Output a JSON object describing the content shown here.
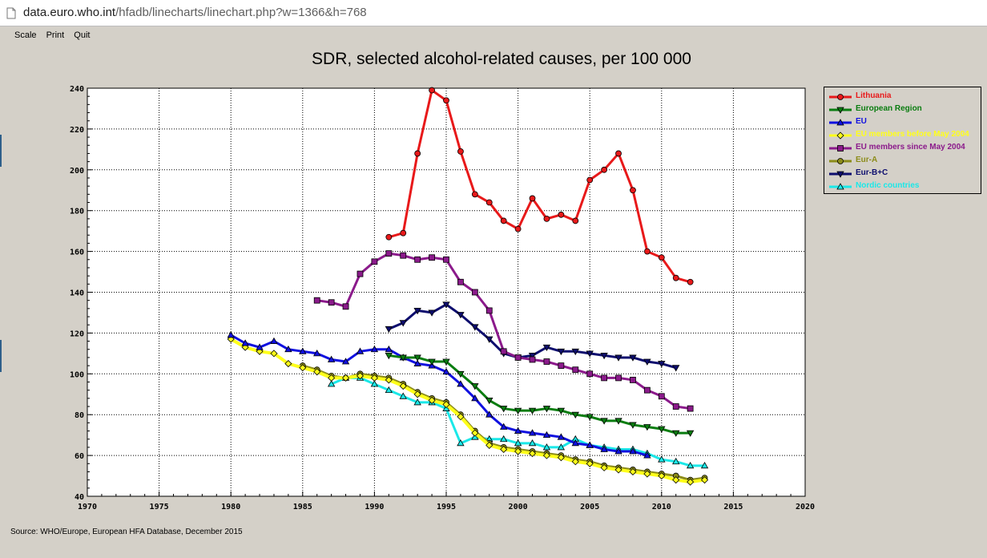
{
  "browser": {
    "url_host": "data.euro.who.int",
    "url_path": "/hfadb/linecharts/linechart.php?w=1366&h=768"
  },
  "menu": [
    "Scale",
    "Print",
    "Quit"
  ],
  "source": "Source: WHO/Europe, European HFA Database, December 2015",
  "chart_data": {
    "type": "line",
    "title": "SDR, selected alcohol-related causes, per 100 000",
    "xlabel": "",
    "ylabel": "",
    "xlim": [
      1970,
      2020
    ],
    "ylim": [
      40,
      240
    ],
    "xticks": [
      1970,
      1975,
      1980,
      1985,
      1990,
      1995,
      2000,
      2005,
      2010,
      2015,
      2020
    ],
    "yticks": [
      40,
      60,
      80,
      100,
      120,
      140,
      160,
      180,
      200,
      220,
      240
    ],
    "grid": true,
    "legend_position": "top-right",
    "series": [
      {
        "name": "Lithuania",
        "color": "#e8191a",
        "marker": "circle",
        "label_color": "#e8191a",
        "x": [
          1991,
          1992,
          1993,
          1994,
          1995,
          1996,
          1997,
          1998,
          1999,
          2000,
          2001,
          2002,
          2003,
          2004,
          2005,
          2006,
          2007,
          2008,
          2009,
          2010,
          2011,
          2012
        ],
        "y": [
          167,
          169,
          208,
          239,
          234,
          209,
          188,
          184,
          175,
          171,
          186,
          176,
          178,
          175,
          195,
          200,
          208,
          190,
          160,
          157,
          147,
          145
        ]
      },
      {
        "name": "European Region",
        "color": "#0a7d10",
        "marker": "triangle-down",
        "label_color": "#0a7d10",
        "x": [
          1991,
          1992,
          1993,
          1994,
          1995,
          1996,
          1997,
          1998,
          1999,
          2000,
          2001,
          2002,
          2003,
          2004,
          2005,
          2006,
          2007,
          2008,
          2009,
          2010,
          2011,
          2012
        ],
        "y": [
          109,
          108,
          108,
          106,
          106,
          100,
          94,
          87,
          83,
          82,
          82,
          83,
          82,
          80,
          79,
          77,
          77,
          75,
          74,
          73,
          71,
          71
        ]
      },
      {
        "name": "EU",
        "color": "#1010e0",
        "marker": "triangle-up",
        "label_color": "#1010e0",
        "x": [
          1980,
          1981,
          1982,
          1983,
          1984,
          1985,
          1986,
          1987,
          1988,
          1989,
          1990,
          1991,
          1992,
          1993,
          1994,
          1995,
          1996,
          1997,
          1998,
          1999,
          2000,
          2001,
          2002,
          2003,
          2004,
          2005,
          2006,
          2007,
          2008,
          2009
        ],
        "y": [
          119,
          115,
          113,
          116,
          112,
          111,
          110,
          107,
          106,
          111,
          112,
          112,
          108,
          105,
          104,
          101,
          95,
          88,
          80,
          74,
          72,
          71,
          70,
          69,
          66,
          65,
          63,
          62,
          62,
          60
        ]
      },
      {
        "name": "EU members before May 2004",
        "color": "#ffff1a",
        "marker": "diamond",
        "label_color": "#ffff1a",
        "x": [
          1980,
          1981,
          1982,
          1983,
          1984,
          1985,
          1986,
          1987,
          1988,
          1989,
          1990,
          1991,
          1992,
          1993,
          1994,
          1995,
          1996,
          1997,
          1998,
          1999,
          2000,
          2001,
          2002,
          2003,
          2004,
          2005,
          2006,
          2007,
          2008,
          2009,
          2010,
          2011,
          2012,
          2013
        ],
        "y": [
          117,
          113,
          111,
          110,
          105,
          103,
          101,
          98,
          98,
          99,
          98,
          97,
          94,
          90,
          87,
          85,
          79,
          71,
          65,
          63,
          62,
          61,
          60,
          59,
          57,
          56,
          54,
          53,
          52,
          51,
          50,
          48,
          47,
          48
        ]
      },
      {
        "name": "EU members since May 2004",
        "color": "#8b1a8b",
        "marker": "square",
        "label_color": "#8b1a8b",
        "x": [
          1986,
          1987,
          1988,
          1989,
          1990,
          1991,
          1992,
          1993,
          1994,
          1995,
          1996,
          1997,
          1998,
          1999,
          2000,
          2001,
          2002,
          2003,
          2004,
          2005,
          2006,
          2007,
          2008,
          2009,
          2010,
          2011,
          2012
        ],
        "y": [
          136,
          135,
          133,
          149,
          155,
          159,
          158,
          156,
          157,
          156,
          145,
          140,
          131,
          111,
          108,
          107,
          106,
          104,
          102,
          100,
          98,
          98,
          97,
          92,
          89,
          84,
          83
        ]
      },
      {
        "name": "Eur-A",
        "color": "#8c8c1a",
        "marker": "circle",
        "label_color": "#8c8c1a",
        "x": [
          1985,
          1986,
          1987,
          1988,
          1989,
          1990,
          1991,
          1992,
          1993,
          1994,
          1995,
          1996,
          1997,
          1998,
          1999,
          2000,
          2001,
          2002,
          2003,
          2004,
          2005,
          2006,
          2007,
          2008,
          2009,
          2010,
          2011,
          2012,
          2013
        ],
        "y": [
          104,
          102,
          99,
          98,
          100,
          99,
          98,
          95,
          91,
          88,
          86,
          80,
          72,
          66,
          64,
          63,
          62,
          61,
          60,
          58,
          57,
          55,
          54,
          53,
          52,
          51,
          50,
          48,
          49
        ]
      },
      {
        "name": "Eur-B+C",
        "color": "#0d0d6e",
        "marker": "triangle-down",
        "label_color": "#0d0d6e",
        "x": [
          1991,
          1992,
          1993,
          1994,
          1995,
          1996,
          1997,
          1998,
          1999,
          2000,
          2001,
          2002,
          2003,
          2004,
          2005,
          2006,
          2007,
          2008,
          2009,
          2010,
          2011
        ],
        "y": [
          122,
          125,
          131,
          130,
          134,
          129,
          123,
          117,
          110,
          108,
          109,
          113,
          111,
          111,
          110,
          109,
          108,
          108,
          106,
          105,
          103
        ]
      },
      {
        "name": "Nordic countries",
        "color": "#1ae8e8",
        "marker": "triangle-up-open",
        "label_color": "#1ae8e8",
        "x": [
          1987,
          1988,
          1989,
          1990,
          1991,
          1992,
          1993,
          1994,
          1995,
          1996,
          1997,
          1998,
          1999,
          2000,
          2001,
          2002,
          2003,
          2004,
          2005,
          2006,
          2007,
          2008,
          2009,
          2010,
          2011,
          2012,
          2013
        ],
        "y": [
          95,
          98,
          98,
          95,
          92,
          89,
          86,
          86,
          83,
          66,
          69,
          68,
          68,
          66,
          66,
          64,
          64,
          68,
          65,
          64,
          63,
          63,
          61,
          58,
          57,
          55,
          55
        ]
      }
    ]
  }
}
